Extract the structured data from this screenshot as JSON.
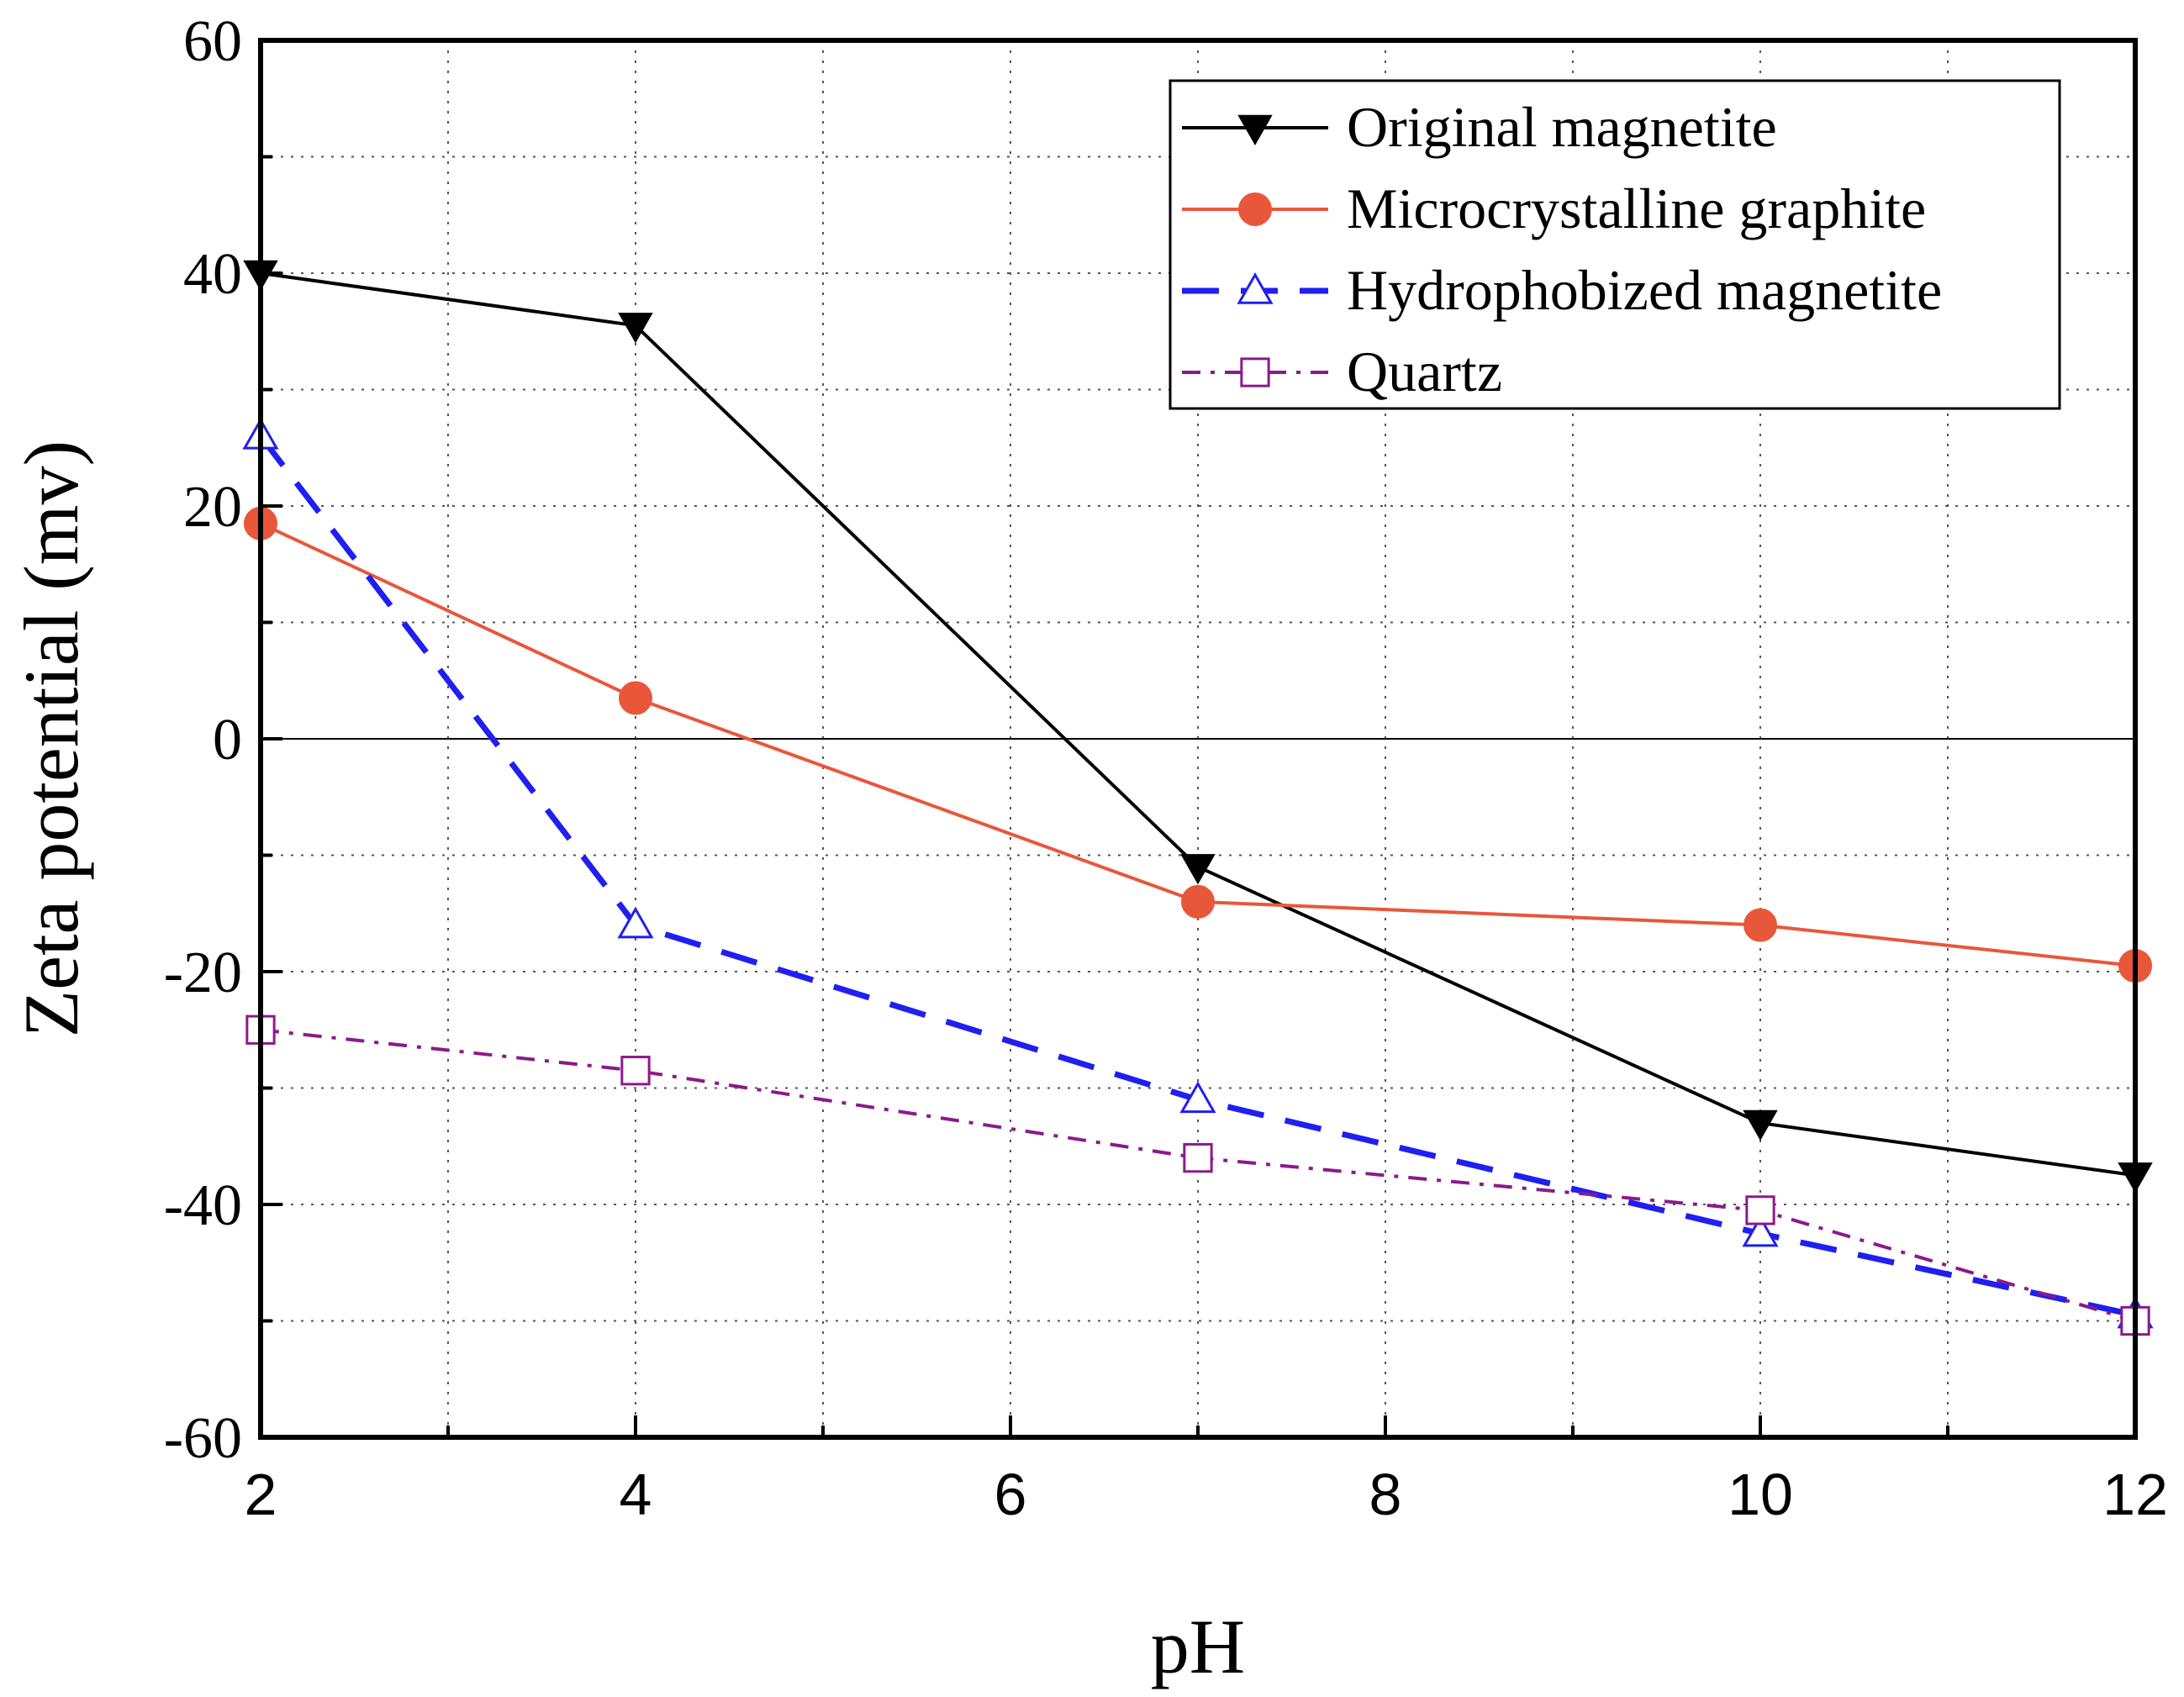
{
  "chart_data": {
    "type": "line",
    "title": "",
    "xlabel": "pH",
    "ylabel": "Zeta potential (mv)",
    "xlim": [
      2,
      12
    ],
    "ylim": [
      -60,
      60
    ],
    "xticks": [
      2,
      4,
      6,
      8,
      10,
      12
    ],
    "yticks": [
      -60,
      -40,
      -20,
      0,
      20,
      40,
      60
    ],
    "ytick_labels": [
      "-60",
      "-40",
      "-20",
      "0",
      "20",
      "40",
      "60"
    ],
    "grid": true,
    "zero_line": true,
    "legend_position": "top-right",
    "series": [
      {
        "name": "Original magnetite",
        "color": "#000000",
        "marker": "triangle-down-filled",
        "linestyle": "solid",
        "x": [
          2,
          4,
          7,
          10,
          12
        ],
        "y": [
          40,
          35.5,
          -11,
          -33,
          -37.5
        ]
      },
      {
        "name": "Microcrystalline graphite",
        "color": "#e8573a",
        "marker": "circle-filled",
        "linestyle": "solid",
        "x": [
          2,
          4,
          7,
          10,
          12
        ],
        "y": [
          18.5,
          3.5,
          -14,
          -16,
          -19.5
        ]
      },
      {
        "name": "Hydrophobized  magnetite",
        "color": "#1f1ff0",
        "marker": "triangle-up-open",
        "linestyle": "dash",
        "x": [
          2,
          4,
          7,
          10,
          12
        ],
        "y": [
          26,
          -16,
          -31,
          -42.5,
          -49.5
        ]
      },
      {
        "name": "Quartz",
        "color": "#8b1a8b",
        "marker": "square-open",
        "linestyle": "dashdot",
        "x": [
          2,
          4,
          7,
          10,
          12
        ],
        "y": [
          -25,
          -28.5,
          -36,
          -40.5,
          -50
        ]
      }
    ]
  }
}
